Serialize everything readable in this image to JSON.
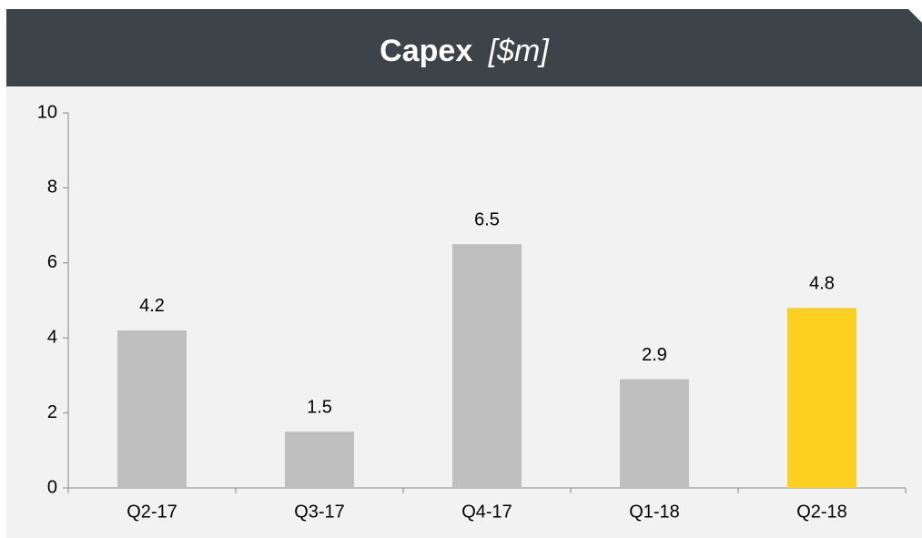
{
  "chart_data": {
    "type": "bar",
    "title": "Capex",
    "unit": "[$m]",
    "categories": [
      "Q2-17",
      "Q3-17",
      "Q4-17",
      "Q1-18",
      "Q2-18"
    ],
    "values": [
      4.2,
      1.5,
      6.5,
      2.9,
      4.8
    ],
    "colors": [
      "#bfbfbf",
      "#bfbfbf",
      "#bfbfbf",
      "#bfbfbf",
      "#fcd01f"
    ],
    "ylim": [
      0,
      10
    ],
    "yticks": [
      0,
      2,
      4,
      6,
      8,
      10
    ],
    "grid": false
  }
}
